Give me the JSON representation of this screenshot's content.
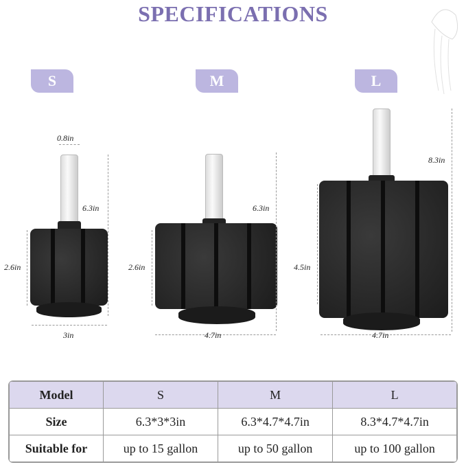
{
  "title": "SPECIFICATIONS",
  "models": [
    {
      "tab": "S",
      "height": "6.3in",
      "tube_diameter": "0.8in",
      "sponge_height": "2.6in",
      "width": "3in"
    },
    {
      "tab": "M",
      "height": "6.3in",
      "sponge_height": "2.6in",
      "width": "4.7in"
    },
    {
      "tab": "L",
      "height": "8.3in",
      "sponge_height": "4.5in",
      "width": "4.7in"
    }
  ],
  "table": {
    "header": [
      "Model",
      "S",
      "M",
      "L"
    ],
    "rows": [
      [
        "Size",
        "6.3*3*3in",
        "6.3*4.7*4.7in",
        "8.3*4.7*4.7in"
      ],
      [
        "Suitable for",
        "up to 15 gallon",
        "up to 50 gallon",
        "up to 100 gallon"
      ]
    ]
  },
  "colors": {
    "accent": "#7b6fb0",
    "tab": "#bcb6e0",
    "table_header": "#dcd8ee"
  }
}
